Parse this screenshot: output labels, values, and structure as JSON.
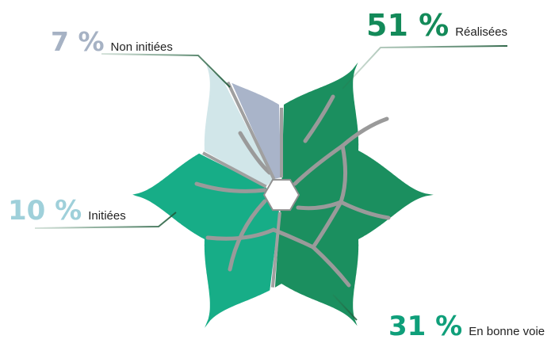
{
  "chart_data": {
    "type": "pie",
    "title": "",
    "slices": [
      {
        "pct_label": "51 %",
        "category": "Réalisées",
        "value": 51,
        "color": "#1b8f5f"
      },
      {
        "pct_label": "31 %",
        "category": "En bonne voie",
        "value": 31,
        "color": "#17ad87"
      },
      {
        "pct_label": "10 %",
        "category": "Initiées",
        "value": 10,
        "color": "#d1e6e9"
      },
      {
        "pct_label": "7 %",
        "category": "Non initiées",
        "value": 7,
        "color": "#a9b4c9"
      }
    ],
    "label_colors": [
      "#138a59",
      "#0f9f7a",
      "#9fd0da",
      "#a6b2c4"
    ]
  }
}
